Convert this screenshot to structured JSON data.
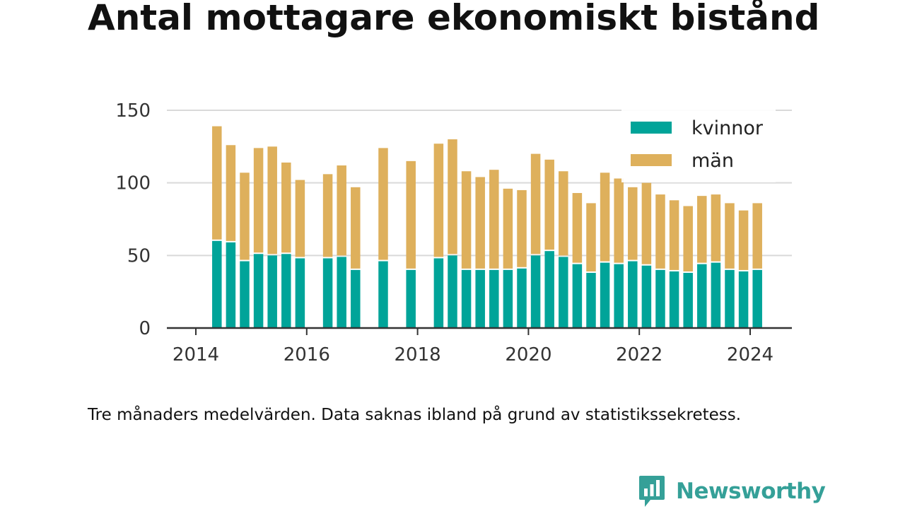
{
  "chart_data": {
    "type": "bar",
    "stacked": true,
    "title": "Antal mottagare ekonomiskt bistånd",
    "caption": "Tre månaders medelvärden. Data saknas ibland på grund av statistikssekretess.",
    "x_ticks": [
      "2014",
      "2016",
      "2018",
      "2020",
      "2022",
      "2024"
    ],
    "y_ticks": [
      "0",
      "50",
      "100",
      "150"
    ],
    "ylim": [
      0,
      150
    ],
    "xlim": [
      2014.0,
      2024.6
    ],
    "grid": true,
    "legend_position": "top-right",
    "x": [
      2014.38,
      2014.63,
      2014.88,
      2015.13,
      2015.38,
      2015.63,
      2015.88,
      2016.38,
      2016.63,
      2016.88,
      2017.38,
      2017.88,
      2018.38,
      2018.63,
      2018.88,
      2019.13,
      2019.38,
      2019.63,
      2019.88,
      2020.13,
      2020.38,
      2020.63,
      2020.88,
      2021.13,
      2021.38,
      2021.63,
      2021.88,
      2022.13,
      2022.38,
      2022.63,
      2022.88,
      2023.13,
      2023.38,
      2023.63,
      2023.88,
      2024.13
    ],
    "series": [
      {
        "name": "kvinnor",
        "color": "#00a499",
        "values": [
          60,
          59,
          46,
          51,
          50,
          51,
          48,
          48,
          49,
          40,
          46,
          40,
          48,
          50,
          40,
          40,
          40,
          40,
          41,
          50,
          53,
          49,
          44,
          38,
          45,
          44,
          46,
          43,
          40,
          39,
          38,
          44,
          45,
          40,
          39,
          40
        ]
      },
      {
        "name": "män",
        "color": "#deb05c",
        "values": [
          79,
          67,
          61,
          73,
          75,
          63,
          54,
          58,
          63,
          57,
          78,
          75,
          79,
          80,
          68,
          64,
          69,
          56,
          54,
          70,
          63,
          59,
          49,
          48,
          62,
          59,
          51,
          57,
          52,
          49,
          46,
          47,
          47,
          46,
          42,
          46
        ]
      }
    ]
  },
  "brand": {
    "name": "Newsworthy",
    "icon": "bar-chart-logo-icon"
  }
}
